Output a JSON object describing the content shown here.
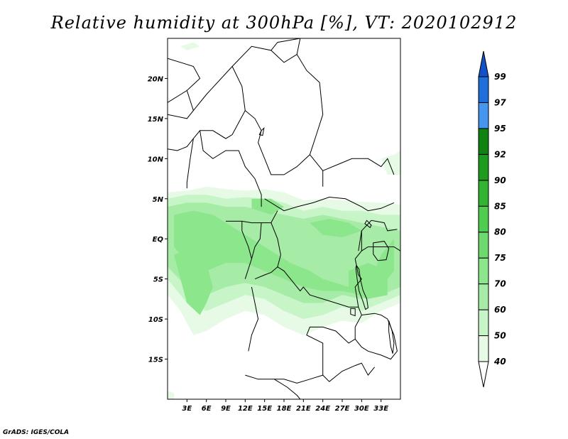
{
  "title": "Relative humidity at 300hPa [%], VT: 2020102912",
  "credit": "GrADS: IGES/COLA",
  "map": {
    "lon_range": [
      0,
      36
    ],
    "lat_range": [
      -20,
      25
    ],
    "lon_ticks": [
      {
        "lon": 3,
        "label": "3E"
      },
      {
        "lon": 6,
        "label": "6E"
      },
      {
        "lon": 9,
        "label": "9E"
      },
      {
        "lon": 12,
        "label": "12E"
      },
      {
        "lon": 15,
        "label": "15E"
      },
      {
        "lon": 18,
        "label": "18E"
      },
      {
        "lon": 21,
        "label": "21E"
      },
      {
        "lon": 24,
        "label": "24E"
      },
      {
        "lon": 27,
        "label": "27E"
      },
      {
        "lon": 30,
        "label": "30E"
      },
      {
        "lon": 33,
        "label": "33E"
      }
    ],
    "lat_ticks": [
      {
        "lat": 20,
        "label": "20N"
      },
      {
        "lat": 15,
        "label": "15N"
      },
      {
        "lat": 10,
        "label": "10N"
      },
      {
        "lat": 5,
        "label": "5N"
      },
      {
        "lat": 0,
        "label": "EQ"
      },
      {
        "lat": -5,
        "label": "5S"
      },
      {
        "lat": -10,
        "label": "10S"
      },
      {
        "lat": -15,
        "label": "15S"
      }
    ]
  },
  "colorbar": {
    "levels": [
      "40",
      "50",
      "60",
      "70",
      "75",
      "80",
      "85",
      "90",
      "92",
      "95",
      "97",
      "99"
    ],
    "colors": [
      "#ffffff",
      "#e6fae6",
      "#c8f5c8",
      "#a6eba6",
      "#8ce68c",
      "#6ed96e",
      "#50cc50",
      "#32b432",
      "#1e9b1e",
      "#0f820f",
      "#4696f0",
      "#1e6edc",
      "#1450c8"
    ]
  },
  "humidity_regions": [
    {
      "level": 0,
      "lonlat": [
        [
          0,
          5.8
        ],
        [
          3,
          6
        ],
        [
          6,
          6.5
        ],
        [
          9,
          6.2
        ],
        [
          12,
          6
        ],
        [
          15,
          6.2
        ],
        [
          18,
          5.8
        ],
        [
          21,
          4.8
        ],
        [
          24,
          5
        ],
        [
          27,
          4.8
        ],
        [
          30,
          4.6
        ],
        [
          33,
          4.5
        ],
        [
          36,
          4.3
        ],
        [
          36,
          -8
        ],
        [
          33,
          -9
        ],
        [
          30,
          -10.5
        ],
        [
          27,
          -10.2
        ],
        [
          24,
          -11
        ],
        [
          21,
          -12
        ],
        [
          18,
          -11
        ],
        [
          15,
          -9.5
        ],
        [
          12,
          -9
        ],
        [
          9,
          -10
        ],
        [
          6,
          -11.5
        ],
        [
          4,
          -12
        ],
        [
          2,
          -9
        ],
        [
          0,
          -7
        ]
      ]
    },
    {
      "level": 1,
      "lonlat": [
        [
          0,
          5
        ],
        [
          3,
          5.5
        ],
        [
          6,
          5.5
        ],
        [
          9,
          5
        ],
        [
          12,
          5.2
        ],
        [
          15,
          5
        ],
        [
          18,
          4.5
        ],
        [
          21,
          3.5
        ],
        [
          24,
          4
        ],
        [
          27,
          3.5
        ],
        [
          30,
          3.5
        ],
        [
          33,
          3
        ],
        [
          36,
          3
        ],
        [
          36,
          -7
        ],
        [
          33,
          -8
        ],
        [
          30,
          -9
        ],
        [
          27,
          -8.5
        ],
        [
          24,
          -9.5
        ],
        [
          21,
          -10
        ],
        [
          18,
          -9
        ],
        [
          15,
          -7.5
        ],
        [
          12,
          -7
        ],
        [
          9,
          -8
        ],
        [
          6,
          -9
        ],
        [
          3,
          -8
        ],
        [
          0,
          -5
        ]
      ]
    },
    {
      "level": 2,
      "lonlat": [
        [
          0,
          4
        ],
        [
          3,
          4.5
        ],
        [
          6,
          4.5
        ],
        [
          9,
          4
        ],
        [
          12,
          4
        ],
        [
          15,
          3.5
        ],
        [
          18,
          3
        ],
        [
          21,
          2.5
        ],
        [
          24,
          3
        ],
        [
          27,
          2.5
        ],
        [
          30,
          2
        ],
        [
          33,
          1.5
        ],
        [
          36,
          1
        ],
        [
          36,
          -6
        ],
        [
          33,
          -7
        ],
        [
          30,
          -7.5
        ],
        [
          27,
          -7
        ],
        [
          24,
          -8
        ],
        [
          21,
          -8
        ],
        [
          18,
          -7
        ],
        [
          15,
          -6
        ],
        [
          12,
          -5.5
        ],
        [
          9,
          -6
        ],
        [
          6,
          -7
        ],
        [
          3,
          -6
        ],
        [
          0,
          -3.5
        ]
      ]
    },
    {
      "level": 3,
      "lonlat": [
        [
          1,
          3
        ],
        [
          4,
          3.5
        ],
        [
          7,
          3
        ],
        [
          9,
          2
        ],
        [
          11,
          1
        ],
        [
          13,
          0
        ],
        [
          15,
          -1
        ],
        [
          17,
          -2
        ],
        [
          19,
          -3
        ],
        [
          22,
          -4
        ],
        [
          24,
          -5
        ],
        [
          26,
          -5.5
        ],
        [
          28,
          -6
        ],
        [
          30,
          -6
        ],
        [
          32,
          -4
        ],
        [
          33,
          -2
        ],
        [
          35,
          0
        ],
        [
          35,
          -4
        ],
        [
          33,
          -6
        ],
        [
          30,
          -7
        ],
        [
          27,
          -6.5
        ],
        [
          24,
          -6.5
        ],
        [
          21,
          -6
        ],
        [
          18,
          -5
        ],
        [
          15,
          -4
        ],
        [
          12,
          -3
        ],
        [
          9,
          -3
        ],
        [
          6,
          -4
        ],
        [
          3,
          -3
        ],
        [
          1,
          -1
        ]
      ]
    },
    {
      "level": 3,
      "lonlat": [
        [
          13,
          5
        ],
        [
          16,
          5
        ],
        [
          18,
          4
        ],
        [
          16,
          3
        ],
        [
          13,
          3.8
        ]
      ]
    },
    {
      "level": 3,
      "lonlat": [
        [
          22,
          2
        ],
        [
          25,
          2.5
        ],
        [
          28,
          2
        ],
        [
          30,
          1
        ],
        [
          27,
          0.2
        ],
        [
          24,
          0.5
        ]
      ]
    },
    {
      "level": 3,
      "lonlat": [
        [
          1,
          -2
        ],
        [
          4,
          -1
        ],
        [
          6,
          -3
        ],
        [
          7,
          -6
        ],
        [
          6,
          -8
        ],
        [
          5,
          -9.5
        ],
        [
          3,
          -8
        ],
        [
          2,
          -5
        ]
      ]
    },
    {
      "level": 3,
      "lonlat": [
        [
          28,
          -4
        ],
        [
          31,
          -3
        ],
        [
          34,
          -4
        ],
        [
          34,
          -7
        ],
        [
          31,
          -7.5
        ],
        [
          28,
          -6.5
        ]
      ]
    },
    {
      "level": 0,
      "lonlat": [
        [
          33,
          10
        ],
        [
          35,
          10.5
        ],
        [
          36,
          11
        ],
        [
          36,
          8
        ],
        [
          34,
          8
        ]
      ]
    },
    {
      "level": 0,
      "lonlat": [
        [
          2,
          24
        ],
        [
          4,
          24.5
        ],
        [
          5,
          24
        ],
        [
          3,
          23.5
        ]
      ]
    },
    {
      "level": 0,
      "lonlat": [
        [
          0,
          -19
        ],
        [
          1,
          -19.2
        ],
        [
          1,
          -20
        ],
        [
          0,
          -20
        ]
      ]
    }
  ],
  "borders": [
    [
      [
        0,
        22.5
      ],
      [
        4,
        21.5
      ],
      [
        5,
        20
      ],
      [
        3,
        18.5
      ],
      [
        0,
        17
      ]
    ],
    [
      [
        3,
        18.5
      ],
      [
        4,
        16
      ],
      [
        3,
        15
      ],
      [
        0,
        15.5
      ]
    ],
    [
      [
        4,
        16
      ],
      [
        6,
        18
      ],
      [
        10,
        21.5
      ],
      [
        13,
        24
      ],
      [
        16,
        23.5
      ],
      [
        17,
        24.5
      ],
      [
        20.5,
        25
      ]
    ],
    [
      [
        10,
        21.5
      ],
      [
        11.5,
        19
      ],
      [
        12,
        16
      ],
      [
        13.5,
        15
      ],
      [
        14.5,
        13.5
      ]
    ],
    [
      [
        20.5,
        25
      ],
      [
        20,
        23
      ],
      [
        18,
        22
      ],
      [
        16,
        23.5
      ]
    ],
    [
      [
        12,
        16
      ],
      [
        10,
        13
      ],
      [
        9,
        12.5
      ],
      [
        7,
        13.5
      ],
      [
        5,
        13.5
      ],
      [
        4,
        12.5
      ],
      [
        3,
        11.5
      ],
      [
        1.5,
        11
      ],
      [
        0,
        11.2
      ]
    ],
    [
      [
        4,
        12.5
      ],
      [
        3.5,
        10
      ],
      [
        3,
        7
      ],
      [
        3,
        6.3
      ]
    ],
    [
      [
        5,
        13.5
      ],
      [
        5.5,
        11
      ],
      [
        7,
        10
      ],
      [
        9,
        11
      ],
      [
        11,
        11
      ],
      [
        12,
        9
      ],
      [
        13.5,
        7.5
      ],
      [
        14.5,
        5.5
      ],
      [
        14.5,
        4
      ]
    ],
    [
      [
        14.5,
        13.5
      ],
      [
        14,
        12
      ],
      [
        15,
        10
      ],
      [
        16,
        8
      ],
      [
        18,
        8
      ],
      [
        20,
        9
      ],
      [
        22,
        10.5
      ],
      [
        24,
        8.5
      ],
      [
        24,
        6.5
      ]
    ],
    [
      [
        20,
        23
      ],
      [
        21.5,
        21
      ],
      [
        23.5,
        19.5
      ],
      [
        24,
        15.5
      ],
      [
        23,
        13
      ],
      [
        22,
        10.5
      ]
    ],
    [
      [
        24,
        8.5
      ],
      [
        27,
        9.5
      ],
      [
        28.5,
        10
      ],
      [
        31,
        10
      ],
      [
        33,
        9
      ],
      [
        34,
        10
      ],
      [
        35,
        8
      ]
    ],
    [
      [
        15,
        5
      ],
      [
        18,
        3.5
      ],
      [
        20,
        4
      ],
      [
        22.5,
        4.5
      ],
      [
        25,
        5.2
      ],
      [
        27.5,
        5
      ],
      [
        30,
        4
      ],
      [
        31,
        3.5
      ],
      [
        33,
        3.8
      ],
      [
        35,
        4.5
      ]
    ],
    [
      [
        9,
        2.2
      ],
      [
        11.5,
        2.2
      ],
      [
        13,
        2
      ],
      [
        14.5,
        2
      ],
      [
        16,
        2
      ],
      [
        17,
        3.5
      ]
    ],
    [
      [
        11.5,
        2.2
      ],
      [
        11.5,
        1
      ],
      [
        12.5,
        -1
      ],
      [
        13,
        -2.5
      ],
      [
        12,
        -5
      ]
    ],
    [
      [
        14.5,
        2
      ],
      [
        14.3,
        0
      ],
      [
        13.5,
        -1
      ],
      [
        13,
        -2.5
      ]
    ],
    [
      [
        16,
        2
      ],
      [
        17,
        0
      ],
      [
        17.5,
        -2
      ],
      [
        17,
        -3.5
      ],
      [
        16,
        -4.2
      ],
      [
        15,
        -4.5
      ],
      [
        13.5,
        -5
      ]
    ],
    [
      [
        17,
        -3.5
      ],
      [
        18,
        -4
      ],
      [
        19,
        -5
      ],
      [
        20.5,
        -6.5
      ],
      [
        21,
        -6
      ],
      [
        22,
        -7
      ],
      [
        24,
        -7.5
      ],
      [
        26,
        -8
      ],
      [
        28,
        -8.5
      ],
      [
        29.5,
        -8.5
      ],
      [
        30,
        -9.5
      ],
      [
        29,
        -11
      ],
      [
        29,
        -12.5
      ],
      [
        28,
        -13
      ],
      [
        26,
        -11.5
      ],
      [
        24,
        -11
      ],
      [
        22,
        -11
      ],
      [
        21.5,
        -12
      ],
      [
        24,
        -13
      ],
      [
        24,
        -17
      ],
      [
        22,
        -17.5
      ],
      [
        20,
        -18
      ],
      [
        18,
        -17.5
      ],
      [
        16.5,
        -17.5
      ],
      [
        14,
        -17.5
      ],
      [
        12,
        -17
      ]
    ],
    [
      [
        13,
        -6
      ],
      [
        13.5,
        -8
      ],
      [
        14,
        -10
      ],
      [
        13,
        -12
      ],
      [
        12.5,
        -14
      ]
    ],
    [
      [
        24,
        -17
      ],
      [
        25,
        -17.8
      ],
      [
        27,
        -16.5
      ],
      [
        29,
        -15.8
      ],
      [
        30,
        -15.5
      ],
      [
        31,
        -17
      ],
      [
        32,
        -16
      ]
    ],
    [
      [
        30,
        -9.5
      ],
      [
        32,
        -9.3
      ],
      [
        33,
        -9.5
      ],
      [
        34,
        -10
      ],
      [
        35,
        -12
      ],
      [
        35.5,
        -14
      ],
      [
        34.5,
        -15
      ],
      [
        33,
        -14.5
      ],
      [
        31,
        -14
      ],
      [
        30,
        -13.5
      ],
      [
        29,
        -12.5
      ]
    ],
    [
      [
        29,
        -2.5
      ],
      [
        30,
        -1.5
      ],
      [
        30,
        0
      ],
      [
        30,
        1
      ],
      [
        31.5,
        2.3
      ],
      [
        33.5,
        2
      ],
      [
        34,
        1
      ],
      [
        35.5,
        1.2
      ]
    ],
    [
      [
        30,
        -1.5
      ],
      [
        31,
        -1
      ],
      [
        33,
        -1
      ],
      [
        35,
        -1
      ],
      [
        36,
        -1.5
      ]
    ],
    [
      [
        29,
        -2.5
      ],
      [
        29.5,
        -4.5
      ],
      [
        30,
        -5
      ],
      [
        29,
        -6
      ],
      [
        29.5,
        -8.5
      ]
    ],
    [
      [
        30,
        1
      ],
      [
        29.5,
        -1.5
      ]
    ],
    [
      [
        16.5,
        -17.5
      ],
      [
        18.5,
        -18.5
      ],
      [
        20,
        -19.5
      ],
      [
        20.5,
        -20
      ]
    ]
  ],
  "water_bodies": [
    [
      [
        29.2,
        -3.3
      ],
      [
        29.6,
        -3.8
      ],
      [
        29.8,
        -5
      ],
      [
        30.2,
        -6.4
      ],
      [
        30.8,
        -7.5
      ],
      [
        31,
        -8.6
      ],
      [
        30.6,
        -8.8
      ],
      [
        30.2,
        -7.8
      ],
      [
        29.6,
        -6.5
      ],
      [
        29.3,
        -5
      ],
      [
        29.1,
        -3.6
      ]
    ],
    [
      [
        31.8,
        -0.5
      ],
      [
        33.5,
        -0.3
      ],
      [
        34.2,
        -1.2
      ],
      [
        33.8,
        -2.6
      ],
      [
        32.5,
        -2.7
      ],
      [
        31.8,
        -1.9
      ]
    ],
    [
      [
        30.5,
        1.9
      ],
      [
        31.3,
        1.4
      ],
      [
        31.5,
        1.7
      ],
      [
        30.8,
        2.3
      ]
    ],
    [
      [
        34.2,
        -10.2
      ],
      [
        34.7,
        -11.5
      ],
      [
        35,
        -13
      ],
      [
        34.8,
        -14.3
      ],
      [
        34.5,
        -13.4
      ],
      [
        34.2,
        -11.5
      ]
    ],
    [
      [
        28.3,
        -8.7
      ],
      [
        29,
        -8.7
      ],
      [
        29,
        -9.6
      ],
      [
        28.3,
        -9.4
      ]
    ],
    [
      [
        14.5,
        13.5
      ],
      [
        14.9,
        13.8
      ],
      [
        14.7,
        12.9
      ],
      [
        14.2,
        13
      ]
    ]
  ]
}
